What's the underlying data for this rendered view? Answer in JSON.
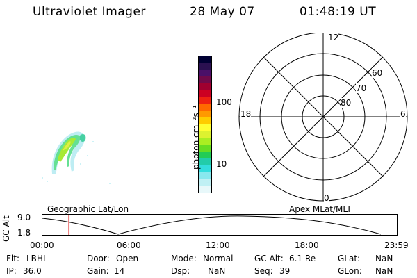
{
  "header": {
    "title": "Ultraviolet Imager",
    "date": "28 May 07",
    "time": "01:48:19 UT"
  },
  "colorbar": {
    "label": "photon cm⁻²s⁻¹",
    "ticks": [
      "100",
      "10"
    ],
    "colors": [
      "#000033",
      "#2a1050",
      "#4a1068",
      "#700a4a",
      "#a00030",
      "#cc0022",
      "#ee2211",
      "#ff6a00",
      "#ff9900",
      "#ffcc00",
      "#ffff33",
      "#ddf230",
      "#aaee22",
      "#66dd22",
      "#22cc55",
      "#22ccaa",
      "#33dddd",
      "#88e8ee",
      "#c0f0f4",
      "#e8f8fa"
    ]
  },
  "polar": {
    "mlt_labels": {
      "top": "12",
      "left": "18",
      "right": "6",
      "bottom": "0"
    },
    "lat_labels": [
      "60",
      "70",
      "80"
    ]
  },
  "orbit": {
    "ylabel": "GC Alt",
    "yticks": [
      "9.0",
      "1.8"
    ],
    "left_title": "Geographic Lat/Lon",
    "right_title": "Apex MLat/MLT",
    "xticks": [
      "00:00",
      "06:00",
      "12:00",
      "18:00",
      "23:59"
    ],
    "marker_time": "01:48"
  },
  "status": {
    "row1": [
      {
        "label": "Flt:",
        "value": "LBHL"
      },
      {
        "label": "Door:",
        "value": "Open"
      },
      {
        "label": "Mode:",
        "value": "Normal"
      },
      {
        "label": "GC Alt:",
        "value": "6.1 Re"
      },
      {
        "label": "GLat:",
        "value": "NaN"
      }
    ],
    "row2": [
      {
        "label": "IP:",
        "value": "36.0"
      },
      {
        "label": "Gain:",
        "value": "14"
      },
      {
        "label": "Dsp:",
        "value": "NaN"
      },
      {
        "label": "Seq:",
        "value": "39"
      },
      {
        "label": "GLon:",
        "value": "NaN"
      }
    ]
  },
  "accent": {
    "marker": "#dd0000"
  }
}
